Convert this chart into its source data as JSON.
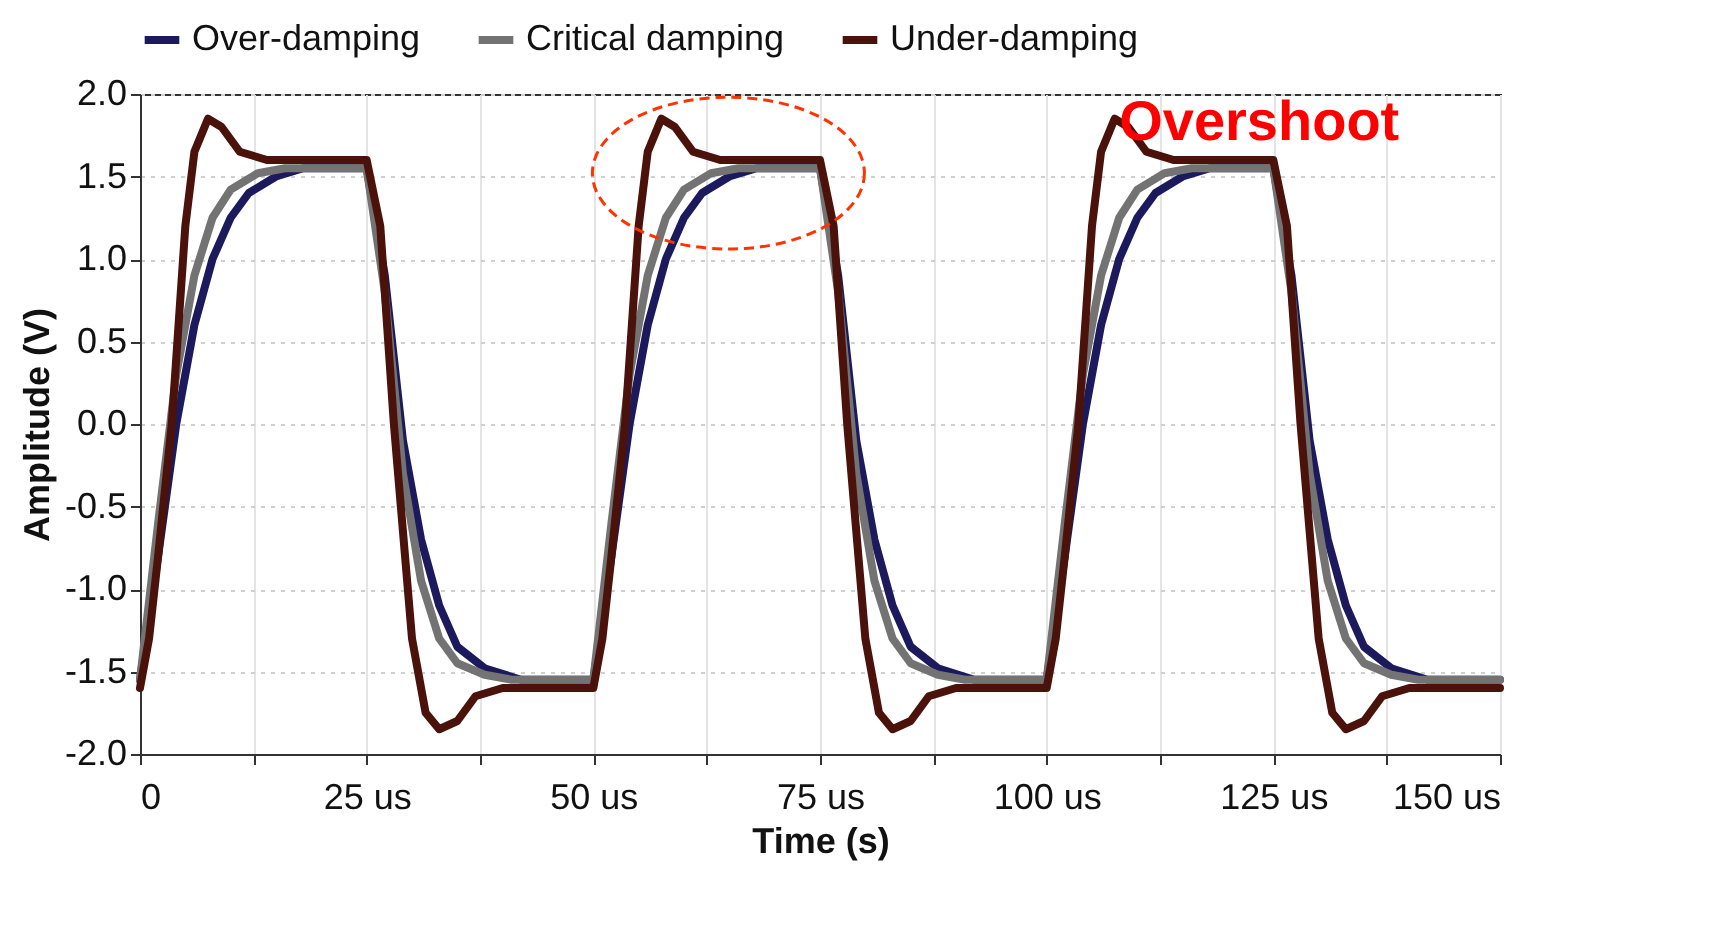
{
  "chart_data": {
    "type": "line",
    "xlabel": "Time (s)",
    "ylabel": "Amplitude (V)",
    "annotations": [
      "Overshoot"
    ],
    "xlim": [
      0,
      150
    ],
    "ylim": [
      -2,
      2
    ],
    "xticks": [
      {
        "value": 0,
        "label": "0"
      },
      {
        "value": 12.5,
        "label": null
      },
      {
        "value": 25,
        "label": "25 us"
      },
      {
        "value": 37.5,
        "label": null
      },
      {
        "value": 50,
        "label": "50 us"
      },
      {
        "value": 62.5,
        "label": null
      },
      {
        "value": 75,
        "label": "75 us"
      },
      {
        "value": 87.5,
        "label": null
      },
      {
        "value": 100,
        "label": "100 us"
      },
      {
        "value": 112.5,
        "label": null
      },
      {
        "value": 125,
        "label": "125 us"
      },
      {
        "value": 137.5,
        "label": null
      },
      {
        "value": 150,
        "label": "150 us"
      }
    ],
    "yticks": [
      {
        "value": -2,
        "label": "-2.0"
      },
      {
        "value": -1.5,
        "label": "-1.5"
      },
      {
        "value": -1,
        "label": "-1.0"
      },
      {
        "value": -0.5,
        "label": "-0.5"
      },
      {
        "value": 0,
        "label": "0.0"
      },
      {
        "value": 0.5,
        "label": "0.5"
      },
      {
        "value": 1,
        "label": "1.0"
      },
      {
        "value": 1.5,
        "label": "1.5"
      },
      {
        "value": 2,
        "label": "2.0"
      }
    ],
    "grid": true,
    "legend": "top",
    "line_style": "solid",
    "series": [
      {
        "name": "Over-damping",
        "color": "#1c1a5c",
        "x": [
          0,
          2,
          4,
          6,
          8,
          10,
          12,
          15,
          18,
          25,
          27,
          29,
          31,
          33,
          35,
          38,
          42,
          50,
          52,
          54,
          56,
          58,
          60,
          62,
          65,
          68,
          75,
          77,
          79,
          81,
          83,
          85,
          88,
          92,
          100,
          102,
          104,
          106,
          108,
          110,
          112,
          115,
          118,
          125,
          127,
          129,
          131,
          133,
          135,
          138,
          142,
          150
        ],
        "values": [
          -1.55,
          -0.8,
          0,
          0.6,
          1,
          1.25,
          1.4,
          1.5,
          1.55,
          1.55,
          0.9,
          -0.1,
          -0.7,
          -1.1,
          -1.35,
          -1.48,
          -1.55,
          -1.55,
          -0.8,
          0,
          0.6,
          1,
          1.25,
          1.4,
          1.5,
          1.55,
          1.55,
          0.9,
          -0.1,
          -0.7,
          -1.1,
          -1.35,
          -1.48,
          -1.55,
          -1.55,
          -0.8,
          0,
          0.6,
          1,
          1.25,
          1.4,
          1.5,
          1.55,
          1.55,
          0.9,
          -0.1,
          -0.7,
          -1.1,
          -1.35,
          -1.48,
          -1.55,
          -1.55
        ]
      },
      {
        "name": "Critical damping",
        "color": "#737373",
        "x": [
          0,
          2,
          4,
          6,
          8,
          10,
          13,
          16,
          25,
          27,
          29,
          31,
          33,
          35,
          38,
          41,
          50,
          52,
          54,
          56,
          58,
          60,
          63,
          66,
          75,
          77,
          79,
          81,
          83,
          85,
          88,
          91,
          100,
          102,
          104,
          106,
          108,
          110,
          113,
          116,
          125,
          127,
          129,
          131,
          133,
          135,
          138,
          141,
          150
        ],
        "values": [
          -1.55,
          -0.6,
          0.3,
          0.9,
          1.25,
          1.42,
          1.52,
          1.55,
          1.55,
          0.8,
          -0.3,
          -0.95,
          -1.3,
          -1.45,
          -1.52,
          -1.55,
          -1.55,
          -0.6,
          0.3,
          0.9,
          1.25,
          1.42,
          1.52,
          1.55,
          1.55,
          0.8,
          -0.3,
          -0.95,
          -1.3,
          -1.45,
          -1.52,
          -1.55,
          -1.55,
          -0.6,
          0.3,
          0.9,
          1.25,
          1.42,
          1.52,
          1.55,
          1.55,
          0.8,
          -0.3,
          -0.95,
          -1.3,
          -1.45,
          -1.52,
          -1.55,
          -1.55
        ]
      },
      {
        "name": "Under-damping",
        "color": "#4a120a",
        "x": [
          0,
          1,
          2,
          3.5,
          5,
          6,
          7.5,
          9,
          11,
          14,
          25,
          26.5,
          28,
          30,
          31.5,
          33,
          35,
          37,
          40,
          50,
          51,
          52,
          53.5,
          55,
          56,
          57.5,
          59,
          61,
          64,
          75,
          76.5,
          78,
          80,
          81.5,
          83,
          85,
          87,
          90,
          100,
          101,
          102,
          103.5,
          105,
          106,
          107.5,
          109,
          111,
          114,
          125,
          126.5,
          128,
          130,
          131.5,
          133,
          135,
          137,
          140,
          150
        ],
        "values": [
          -1.6,
          -1.3,
          -0.8,
          0,
          1.2,
          1.65,
          1.85,
          1.8,
          1.65,
          1.6,
          1.6,
          1.2,
          0,
          -1.3,
          -1.75,
          -1.85,
          -1.8,
          -1.65,
          -1.6,
          -1.6,
          -1.3,
          -0.8,
          0,
          1.2,
          1.65,
          1.85,
          1.8,
          1.65,
          1.6,
          1.6,
          1.2,
          0,
          -1.3,
          -1.75,
          -1.85,
          -1.8,
          -1.65,
          -1.6,
          -1.6,
          -1.3,
          -0.8,
          0,
          1.2,
          1.65,
          1.85,
          1.8,
          1.65,
          1.6,
          1.6,
          1.2,
          0,
          -1.3,
          -1.75,
          -1.85,
          -1.8,
          -1.65,
          -1.6,
          -1.6
        ]
      }
    ]
  }
}
